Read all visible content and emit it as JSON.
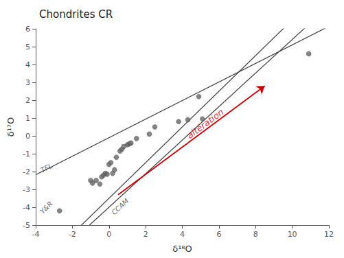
{
  "chart_data": {
    "type": "scatter",
    "title": "Chondrites CR",
    "xlabel": "δ¹⁸O",
    "ylabel": "δ¹⁷O",
    "xlim": [
      -4,
      12
    ],
    "ylim": [
      -5,
      6
    ],
    "xticks": [
      -4,
      -2,
      0,
      2,
      4,
      6,
      8,
      10,
      12
    ],
    "yticks": [
      -5,
      -4,
      -3,
      -2,
      -1,
      0,
      1,
      2,
      3,
      4,
      5,
      6
    ],
    "grid": false,
    "x": [
      -2.7,
      -1.0,
      -0.9,
      -0.7,
      -0.5,
      -0.4,
      -0.3,
      -0.2,
      -0.1,
      0.0,
      0.1,
      0.2,
      0.3,
      0.4,
      0.6,
      0.7,
      0.8,
      1.0,
      1.1,
      1.2,
      1.5,
      2.2,
      2.5,
      3.8,
      4.3,
      4.9,
      5.1,
      10.9
    ],
    "values": [
      -4.2,
      -2.5,
      -2.65,
      -2.5,
      -2.7,
      -2.3,
      -2.2,
      -2.1,
      -2.15,
      -1.6,
      -1.5,
      -2.1,
      -1.9,
      -1.2,
      -0.85,
      -0.75,
      -0.6,
      -0.5,
      -0.45,
      -0.4,
      -0.15,
      0.1,
      0.5,
      0.8,
      0.9,
      2.2,
      0.95,
      4.6
    ],
    "color": "#666666",
    "lines": [
      {
        "x": [
          -4,
          12
        ],
        "y": [
          -2.18,
          6.14
        ],
        "color": "#3a3a3a",
        "label": {
          "text": "TFL",
          "x": -3.7,
          "y": -1.95
        }
      },
      {
        "x": [
          -4,
          12
        ],
        "y": [
          -7.5,
          8.5
        ],
        "color": "#3a3a3a",
        "label": {
          "text": "Y&R",
          "x": -3.7,
          "y": -4.3
        }
      },
      {
        "x": [
          -4,
          12
        ],
        "y": [
          -7.76,
          7.28
        ],
        "color": "#3a3a3a",
        "label": {
          "text": "CCAM",
          "x": 0.2,
          "y": -4.35
        }
      }
    ],
    "arrow": {
      "x": [
        0.5,
        8.5
      ],
      "y": [
        -3.3,
        2.8
      ],
      "color": "#cc0000",
      "label": {
        "text": "altération",
        "x": 4.5,
        "y": -0.3
      }
    }
  }
}
